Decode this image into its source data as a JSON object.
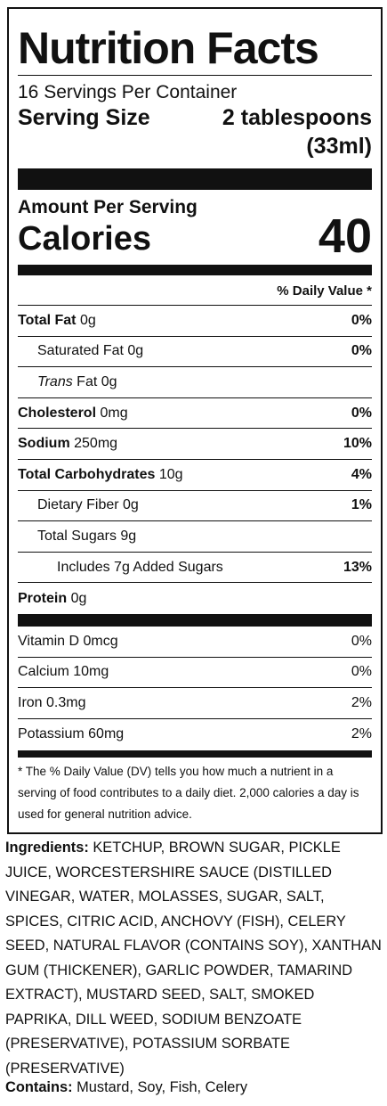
{
  "label": {
    "title": "Nutrition Facts",
    "servings": "16 Servings Per Container",
    "serving_size_label": "Serving Size",
    "serving_size_value": "2 tablespoons",
    "serving_size_metric": "(33ml)",
    "amount_per_serving": "Amount Per Serving",
    "calories_label": "Calories",
    "calories_value": "40",
    "dv_header": "% Daily Value *",
    "nutrients": {
      "total_fat": {
        "name": "Total Fat",
        "amount": "0g",
        "dv": "0%"
      },
      "saturated_fat": {
        "name": "Saturated Fat",
        "amount": "0g",
        "dv": "0%"
      },
      "trans_fat": {
        "name_italic": "Trans",
        "name": "Fat",
        "amount": "0g"
      },
      "cholesterol": {
        "name": "Cholesterol",
        "amount": "0mg",
        "dv": "0%"
      },
      "sodium": {
        "name": "Sodium",
        "amount": "250mg",
        "dv": "10%"
      },
      "total_carbs": {
        "name": "Total Carbohydrates",
        "amount": "10g",
        "dv": "4%"
      },
      "dietary_fiber": {
        "name": "Dietary Fiber",
        "amount": "0g",
        "dv": "1%"
      },
      "total_sugars": {
        "name": "Total Sugars",
        "amount": "9g"
      },
      "added_sugars": {
        "name": "Includes 7g Added Sugars",
        "dv": "13%"
      },
      "protein": {
        "name": "Protein",
        "amount": "0g"
      }
    },
    "vitamins": {
      "vitamin_d": {
        "name": "Vitamin D 0mcg",
        "dv": "0%"
      },
      "calcium": {
        "name": "Calcium 10mg",
        "dv": "0%"
      },
      "iron": {
        "name": "Iron 0.3mg",
        "dv": "2%"
      },
      "potassium": {
        "name": "Potassium 60mg",
        "dv": "2%"
      }
    },
    "footnote": "* The % Daily Value (DV) tells you how much a nutrient in a serving of food contributes to a daily diet. 2,000 calories a day is used for general nutrition advice."
  },
  "ingredients": {
    "label": "Ingredients:",
    "text": "KETCHUP, BROWN SUGAR, PICKLE JUICE, WORCESTERSHIRE SAUCE (DISTILLED VINEGAR, WATER, MOLASSES, SUGAR, SALT, SPICES, CITRIC ACID, ANCHOVY (FISH), CELERY SEED, NATURAL FLAVOR (CONTAINS SOY), XANTHAN GUM (THICKENER), GARLIC POWDER, TAMARIND EXTRACT), MUSTARD SEED, SALT, SMOKED PAPRIKA, DILL WEED, SODIUM BENZOATE (PRESERVATIVE), POTASSIUM SORBATE (PRESERVATIVE)"
  },
  "contains": {
    "label": "Contains:",
    "text": "Mustard, Soy, Fish, Celery"
  }
}
